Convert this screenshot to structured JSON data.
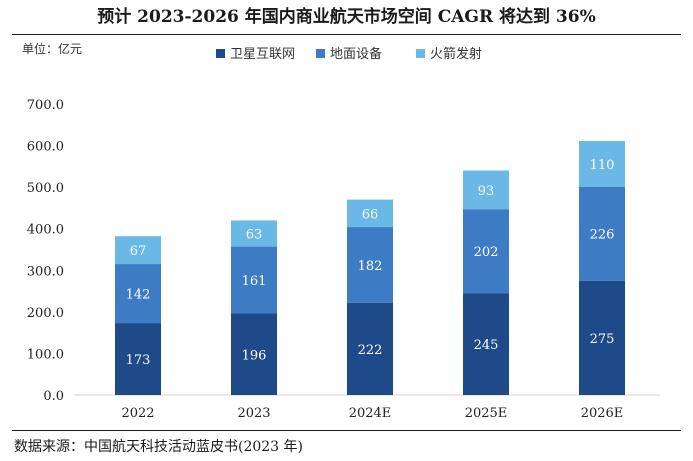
{
  "header": {
    "title": "预计 2023-2026 年国内商业航天市场空间 CAGR 将达到 36%",
    "unit": "单位：亿元"
  },
  "footer": {
    "source": "数据来源：中国航天科技活动蓝皮书(2023 年)"
  },
  "chart_data": {
    "type": "bar",
    "stacked": true,
    "title": "预计 2023-2026 年国内商业航天市场空间 CAGR 将达到 36%",
    "xlabel": "",
    "ylabel": "单位：亿元",
    "categories": [
      "2022",
      "2023",
      "2024E",
      "2025E",
      "2026E"
    ],
    "series": [
      {
        "name": "卫星互联网",
        "color": "#1f4a8a",
        "values": [
          173,
          196,
          222,
          245,
          275
        ]
      },
      {
        "name": "地面设备",
        "color": "#3d7cc4",
        "values": [
          142,
          161,
          182,
          202,
          226
        ]
      },
      {
        "name": "火箭发射",
        "color": "#6ab8e6",
        "values": [
          67,
          63,
          66,
          93,
          110
        ]
      }
    ],
    "ylim": [
      0,
      700
    ],
    "yticks": [
      0,
      100,
      200,
      300,
      400,
      500,
      600,
      700
    ],
    "ytick_labels": [
      "0.0",
      "100.0",
      "200.0",
      "300.0",
      "400.0",
      "500.0",
      "600.0",
      "700.0"
    ],
    "grid": false,
    "legend_position": "top-center"
  }
}
